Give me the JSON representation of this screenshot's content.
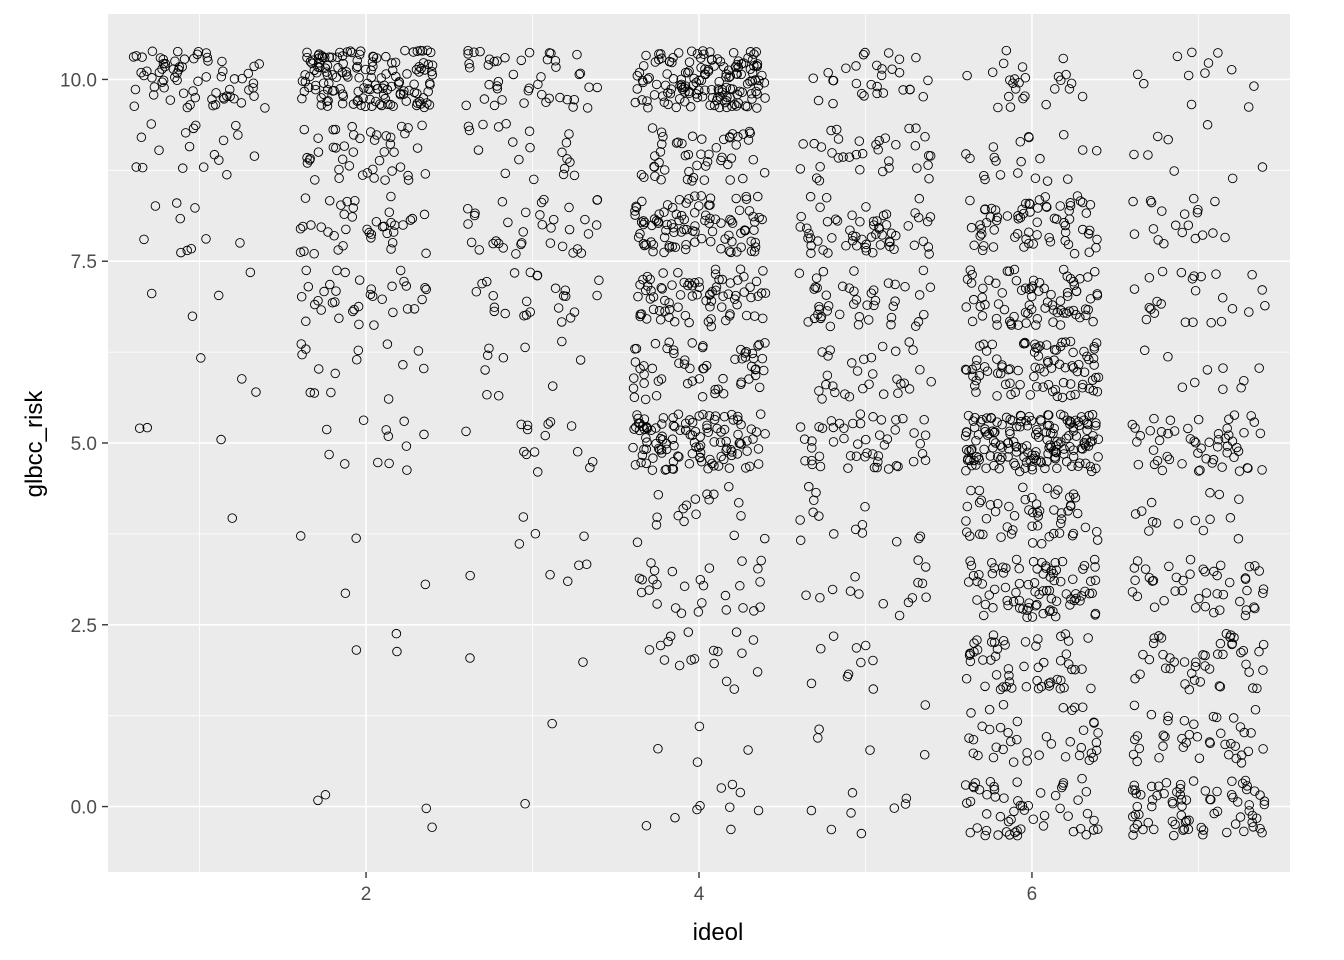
{
  "chart_data": {
    "type": "scatter",
    "title": "",
    "xlabel": "ideol",
    "ylabel": "glbcc_risk",
    "xlim": [
      0.45,
      7.55
    ],
    "ylim": [
      -0.9,
      10.9
    ],
    "x_ticks": [
      2,
      4,
      6
    ],
    "x_tick_labels": [
      "2",
      "4",
      "6"
    ],
    "y_ticks": [
      0,
      2.5,
      5,
      7.5,
      10
    ],
    "y_tick_labels": [
      "0.0",
      "2.5",
      "5.0",
      "7.5",
      "10.0"
    ],
    "grid": true,
    "jitter": {
      "width": 0.4,
      "height": 0.4
    },
    "point_style": "open-circle",
    "groups": [
      {
        "ideol": 1,
        "counts": {
          "10": 70,
          "9": 18,
          "8": 10,
          "7": 4,
          "6": 3,
          "5": 3,
          "4": 1
        }
      },
      {
        "ideol": 2,
        "counts": {
          "10": 150,
          "9": 45,
          "8": 40,
          "7": 35,
          "6": 15,
          "5": 12,
          "4": 2,
          "3": 2,
          "2": 3,
          "0": 4
        }
      },
      {
        "ideol": 3,
        "counts": {
          "10": 45,
          "9": 20,
          "8": 35,
          "7": 25,
          "6": 10,
          "5": 15,
          "4": 4,
          "3": 5,
          "2": 2,
          "1": 1,
          "0": 1
        }
      },
      {
        "ideol": 4,
        "counts": {
          "10": 150,
          "9": 50,
          "8": 100,
          "7": 80,
          "6": 60,
          "5": 120,
          "4": 18,
          "3": 28,
          "2": 18,
          "1": 4,
          "0": 10
        }
      },
      {
        "ideol": 5,
        "counts": {
          "10": 30,
          "9": 35,
          "8": 60,
          "7": 45,
          "6": 30,
          "5": 50,
          "4": 15,
          "3": 15,
          "2": 10,
          "1": 5,
          "0": 8
        }
      },
      {
        "ideol": 6,
        "counts": {
          "10": 25,
          "9": 20,
          "8": 70,
          "7": 80,
          "6": 90,
          "5": 170,
          "4": 55,
          "3": 85,
          "2": 55,
          "1": 40,
          "0": 55
        }
      },
      {
        "ideol": 7,
        "counts": {
          "10": 12,
          "9": 8,
          "8": 20,
          "7": 25,
          "6": 10,
          "5": 55,
          "4": 15,
          "3": 45,
          "2": 45,
          "1": 40,
          "0": 75
        }
      }
    ]
  }
}
